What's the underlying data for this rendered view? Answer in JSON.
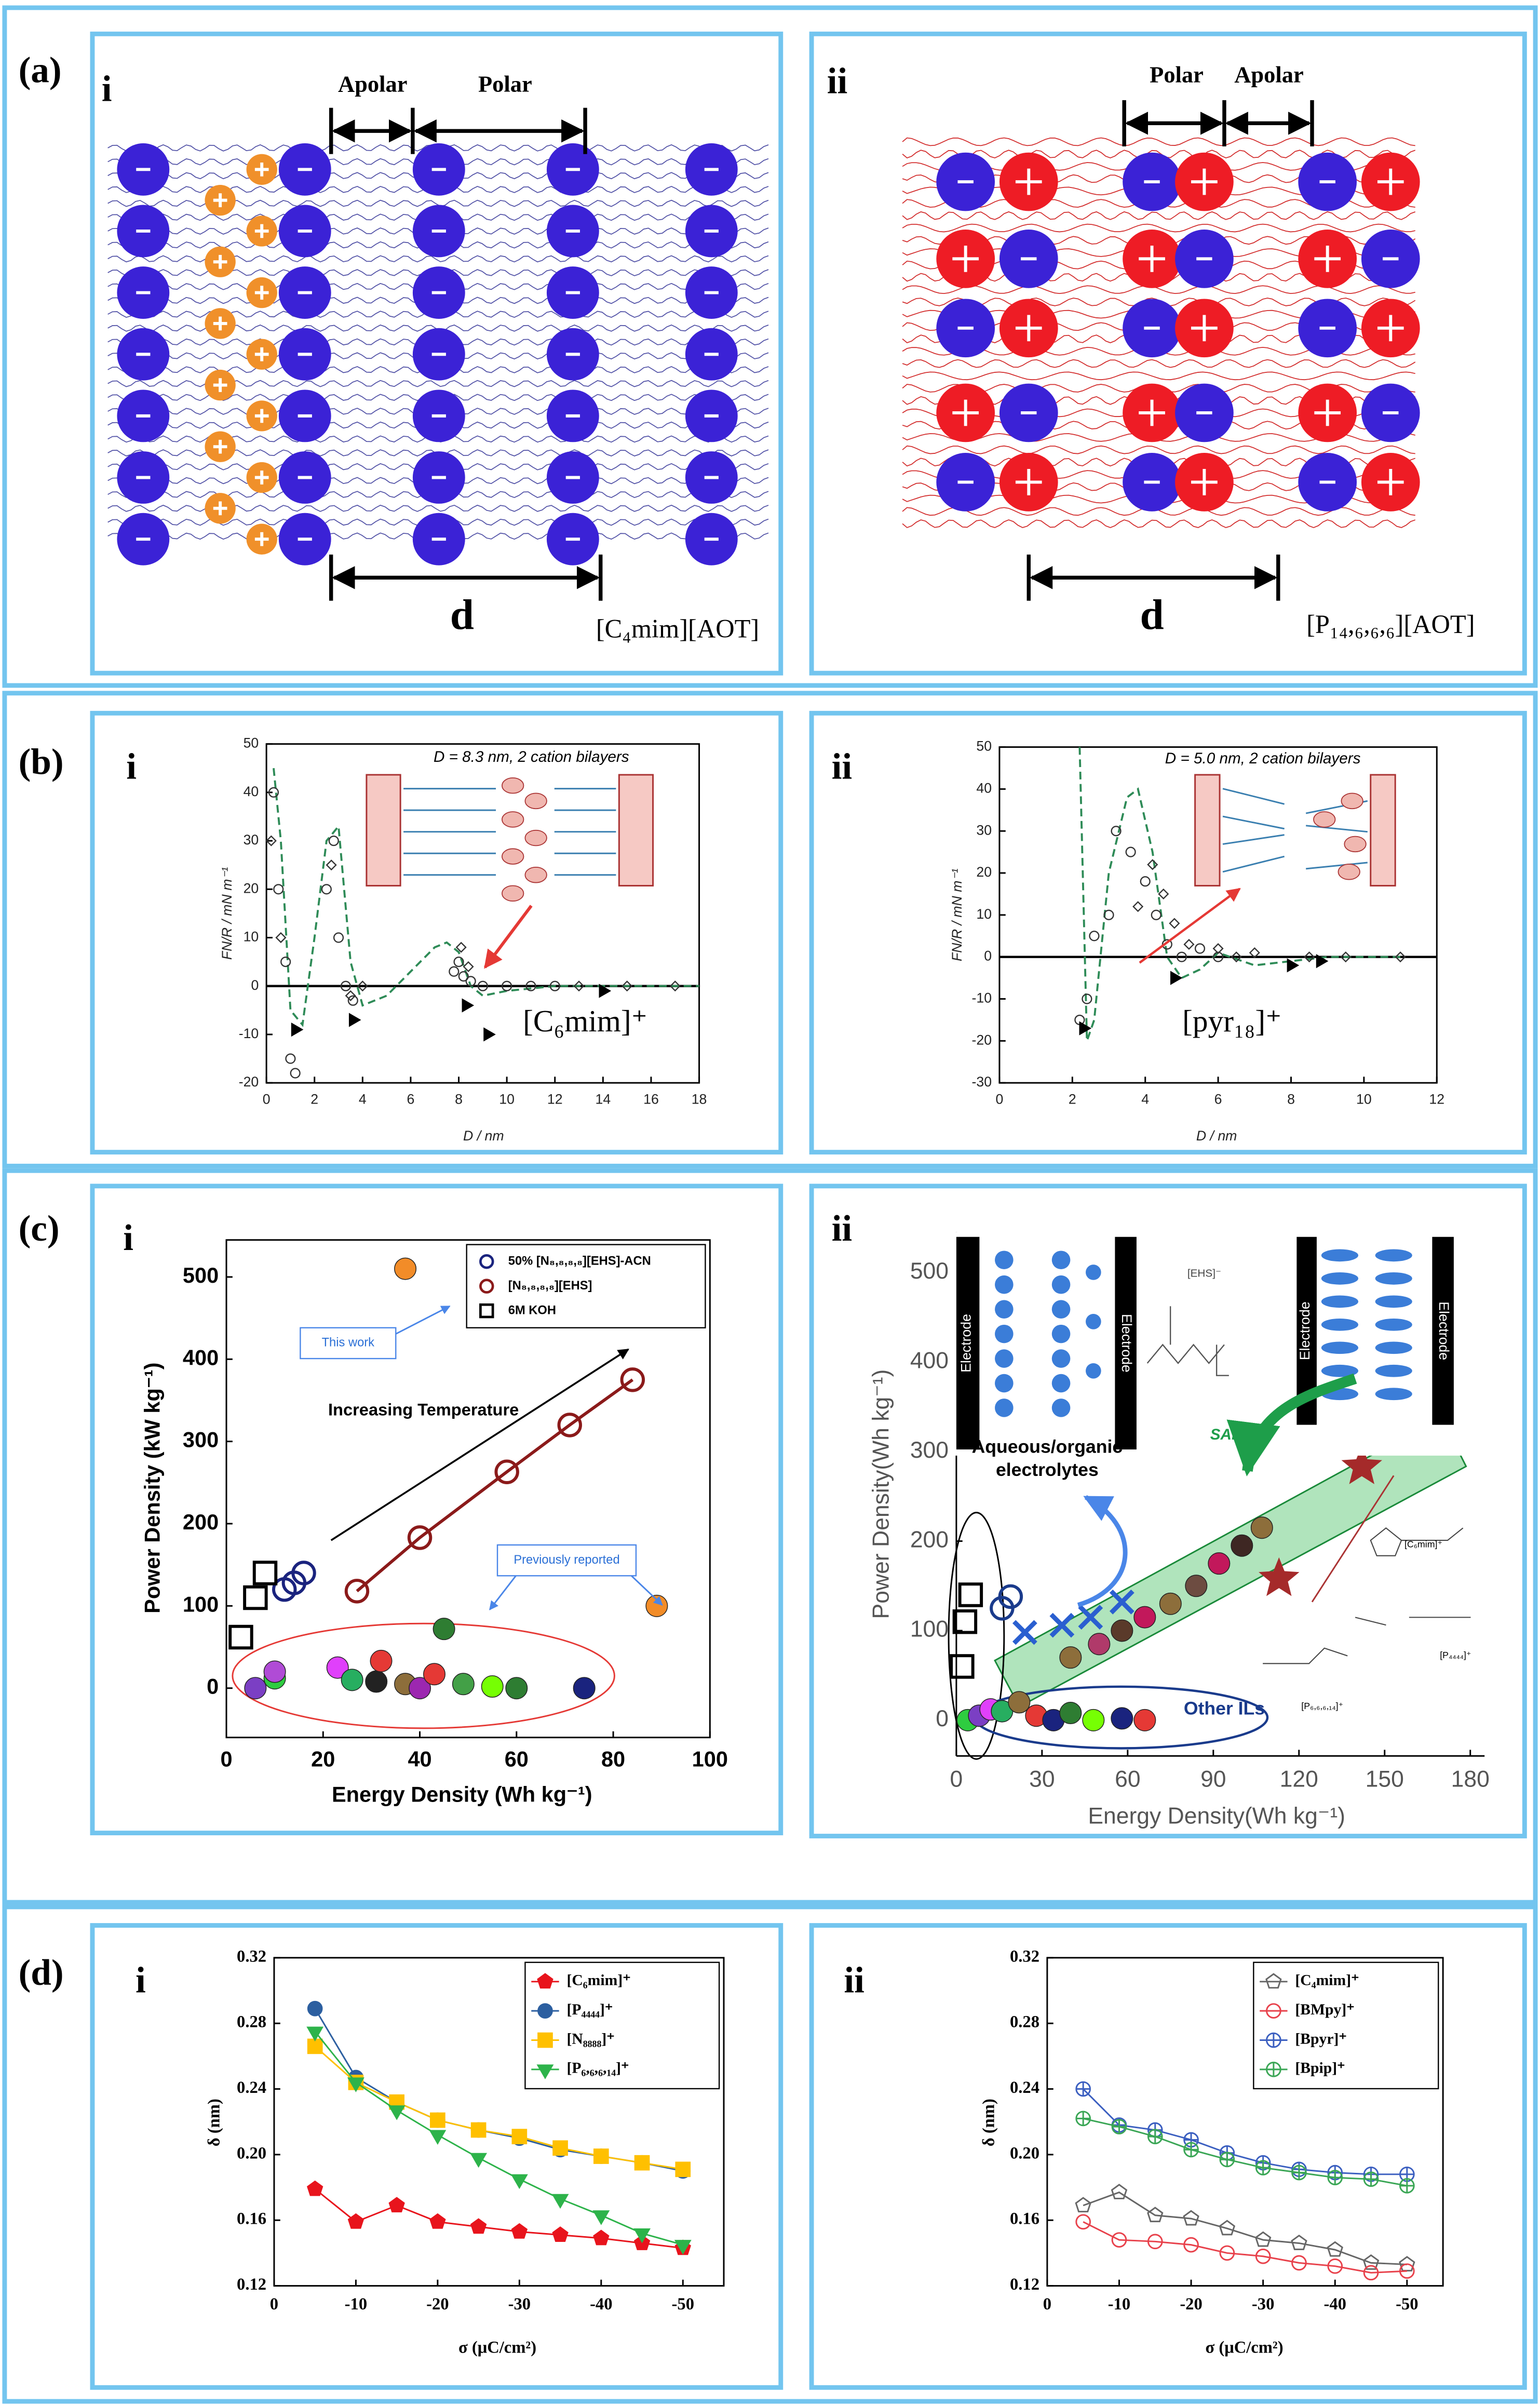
{
  "panel_labels": [
    "(a)",
    "(b)",
    "(c)",
    "(d)"
  ],
  "sub_labels": [
    "i",
    "ii"
  ],
  "panel_a": {
    "apolar": "Apolar",
    "polar": "Polar",
    "spacing": "d",
    "compounds": [
      "[C₄mim][AOT]",
      "[P₁₄,₆,₆,₆][AOT]"
    ]
  },
  "chart_data": [
    {
      "type": "scatter",
      "annotation": "D = 8.3 nm, 2 cation bilayers",
      "ion": "[C₆mim]⁺",
      "xlabel": "D / nm",
      "ylabel": "FN/R / mN m⁻¹",
      "xlim": [
        0,
        18
      ],
      "xticks": [
        0,
        2,
        4,
        6,
        8,
        10,
        12,
        14,
        16,
        18
      ],
      "ylim": [
        -20,
        50
      ],
      "yticks": [
        -20,
        -10,
        0,
        10,
        20,
        30,
        40,
        50
      ],
      "zero_line": true,
      "series": [
        {
          "color": "#2e8b57",
          "marker": "none",
          "line": "dashed",
          "x": [
            0.3,
            0.6,
            1,
            1.5,
            2,
            2.5,
            3,
            3.5,
            4,
            5,
            6,
            7,
            7.5,
            8,
            8.5,
            9,
            10,
            12,
            14,
            16,
            18
          ],
          "values": [
            45,
            30,
            -5,
            -8,
            10,
            30,
            33,
            5,
            -4,
            -2,
            3,
            8,
            9,
            7,
            0,
            -2,
            -1,
            0,
            0,
            0,
            0
          ]
        },
        {
          "color": "#333333",
          "marker": "circle",
          "filled": false,
          "line": "none",
          "x": [
            0.3,
            0.5,
            0.8,
            1,
            1.2,
            2.5,
            2.8,
            3,
            3.3,
            3.6,
            7.8,
            8,
            8.2,
            8.5,
            9,
            10,
            11,
            12
          ],
          "values": [
            40,
            20,
            5,
            -15,
            -18,
            20,
            30,
            10,
            0,
            -3,
            3,
            5,
            2,
            1,
            0,
            0,
            0,
            0
          ]
        },
        {
          "color": "#333333",
          "marker": "diamond",
          "filled": false,
          "line": "none",
          "x": [
            0.2,
            0.6,
            2.7,
            3.5,
            4,
            8.1,
            8.4,
            13,
            15,
            17
          ],
          "values": [
            30,
            10,
            25,
            -2,
            0,
            8,
            4,
            0,
            0,
            0
          ]
        },
        {
          "color": "#000000",
          "marker": "triangle-right",
          "filled": true,
          "line": "none",
          "x": [
            1.2,
            3.6,
            8.3,
            9.2,
            14
          ],
          "values": [
            -9,
            -7,
            -4,
            -10,
            -1
          ]
        }
      ]
    },
    {
      "type": "scatter",
      "annotation": "D = 5.0 nm, 2 cation bilayers",
      "ion": "[pyr₁₈]⁺",
      "xlabel": "D / nm",
      "ylabel": "FN/R / mN m⁻¹",
      "xlim": [
        0,
        12
      ],
      "xticks": [
        0,
        2,
        4,
        6,
        8,
        10,
        12
      ],
      "ylim": [
        -30,
        50
      ],
      "yticks": [
        -30,
        -20,
        -10,
        0,
        10,
        20,
        30,
        40,
        50
      ],
      "zero_line": true,
      "series": [
        {
          "color": "#2e8b57",
          "marker": "none",
          "line": "dashed",
          "x": [
            2.2,
            2.4,
            2.6,
            3,
            3.5,
            3.8,
            4.2,
            4.6,
            5,
            5.5,
            6,
            7,
            8,
            9,
            10,
            11
          ],
          "values": [
            50,
            -20,
            -15,
            20,
            38,
            40,
            25,
            0,
            -5,
            -3,
            1,
            -2,
            -1,
            0,
            0,
            0
          ]
        },
        {
          "color": "#333333",
          "marker": "circle",
          "filled": false,
          "line": "none",
          "x": [
            2.2,
            2.4,
            2.6,
            3,
            3.2,
            3.6,
            4,
            4.3,
            4.6,
            5,
            5.5,
            6
          ],
          "values": [
            -15,
            -10,
            5,
            10,
            30,
            25,
            18,
            10,
            3,
            0,
            2,
            0
          ]
        },
        {
          "color": "#333333",
          "marker": "diamond",
          "filled": false,
          "line": "none",
          "x": [
            3.8,
            4.2,
            4.5,
            4.8,
            5.2,
            6,
            6.5,
            7,
            8.5,
            9.5,
            11
          ],
          "values": [
            12,
            22,
            15,
            8,
            3,
            2,
            0,
            1,
            0,
            0,
            0
          ]
        },
        {
          "color": "#000000",
          "marker": "triangle-right",
          "filled": true,
          "line": "none",
          "x": [
            2.3,
            4.8,
            8,
            8.8
          ],
          "values": [
            -17,
            -5,
            -2,
            -1
          ]
        }
      ]
    },
    {
      "type": "scatter",
      "xlabel": "Energy Density (Wh kg⁻¹)",
      "ylabel": "Power Density (kW kg⁻¹)",
      "xlim": [
        0,
        100
      ],
      "xticks": [
        0,
        20,
        40,
        60,
        80,
        100
      ],
      "ylim": [
        -60,
        545
      ],
      "yticks": [
        0,
        100,
        200,
        300,
        400,
        500
      ],
      "legend": "upper right",
      "annotations": {
        "this_work": "This work",
        "temperature": "Increasing Temperature",
        "previous": "Previously reported"
      },
      "series": [
        {
          "name": "50% [N₈,₈,₈,₈][EHS]-ACN",
          "color": "#1a237e",
          "marker": "circle",
          "filled": false,
          "line": "none",
          "x": [
            12,
            14,
            16
          ],
          "values": [
            120,
            128,
            140
          ]
        },
        {
          "name": "[N₈,₈,₈,₈][EHS]",
          "color": "#8b1a1a",
          "marker": "circle",
          "filled": false,
          "line": "solid",
          "x": [
            27,
            40,
            58,
            71,
            84
          ],
          "values": [
            118,
            183,
            263,
            320,
            375
          ]
        },
        {
          "name": "6M KOH",
          "color": "#000000",
          "marker": "square",
          "filled": false,
          "line": "none",
          "x": [
            3,
            6,
            8
          ],
          "values": [
            62,
            110,
            140
          ]
        },
        {
          "color": "#f28c28",
          "marker": "sphere",
          "filled": true,
          "line": "none",
          "x": [
            37,
            89
          ],
          "values": [
            510,
            100
          ]
        },
        {
          "color": "#2e7d32",
          "marker": "sphere",
          "filled": true,
          "line": "none",
          "x": [
            6,
            10,
            10,
            23,
            26,
            31,
            32,
            37,
            40,
            43,
            45,
            49,
            55,
            60,
            74
          ],
          "values": [
            0,
            12,
            20,
            25,
            10,
            8,
            33,
            5,
            0,
            17,
            72,
            5,
            2,
            0,
            0
          ],
          "colors": [
            "#7b3fc4",
            "#2ecc40",
            "#b04bd6",
            "#e040fb",
            "#27ae60",
            "#222222",
            "#e53935",
            "#8d6e3b",
            "#9c27b0",
            "#e53935",
            "#2e7d32",
            "#43a047",
            "#76ff03",
            "#2e7d32",
            "#1a237e"
          ]
        }
      ]
    },
    {
      "type": "scatter",
      "xlabel": "Energy Density(Wh kg⁻¹)",
      "ylabel": "Power Density(Wh kg⁻¹)",
      "xlim": [
        0,
        185
      ],
      "xticks": [
        0,
        30,
        60,
        90,
        120,
        150,
        180
      ],
      "ylim": [
        -40,
        545
      ],
      "yticks": [
        0,
        100,
        200,
        300,
        400,
        500
      ],
      "annotations": {
        "electrode": "Electrode",
        "anion": "[EHS]⁻",
        "aqueous": [
          "Aqueous/organic",
          "electrolytes"
        ],
        "sails": "SAILs",
        "other": "Other ILs",
        "cations": [
          "[C₆mim]⁺",
          "[P₄₄₄₄]⁺",
          "[P₆,₆,₆,₁₄]⁺"
        ]
      },
      "series": [
        {
          "color": "#000000",
          "marker": "square",
          "filled": false,
          "line": "none",
          "x": [
            2,
            3,
            5
          ],
          "values": [
            60,
            110,
            140
          ]
        },
        {
          "color": "#1a3b8c",
          "marker": "circle",
          "filled": false,
          "line": "none",
          "x": [
            16,
            19
          ],
          "values": [
            125,
            138
          ]
        },
        {
          "color": "#2a5fd0",
          "marker": "cross",
          "filled": false,
          "line": "none",
          "x": [
            24,
            37,
            47,
            58
          ],
          "values": [
            98,
            106,
            115,
            132
          ]
        },
        {
          "color": "#8d6e3b",
          "marker": "sphere",
          "filled": true,
          "line": "none",
          "x": [
            40,
            50,
            58,
            66,
            75,
            84,
            92,
            100,
            107
          ],
          "values": [
            70,
            85,
            100,
            115,
            130,
            150,
            175,
            195,
            215
          ],
          "colors": [
            "#8d6e3b",
            "#b03a6a",
            "#5a3a2a",
            "#c2185b",
            "#8d6e3b",
            "#6d4c41",
            "#c2185b",
            "#3e2723",
            "#8d6e3b"
          ]
        },
        {
          "color": "#2e7d32",
          "marker": "sphere",
          "filled": true,
          "line": "none",
          "x": [
            4,
            8,
            12,
            16,
            22,
            28,
            34,
            40,
            48,
            58,
            66
          ],
          "values": [
            0,
            5,
            12,
            10,
            20,
            5,
            0,
            8,
            0,
            2,
            0
          ],
          "colors": [
            "#2ecc40",
            "#7b3fc4",
            "#e040fb",
            "#27ae60",
            "#8d6e3b",
            "#e53935",
            "#1a237e",
            "#2e7d32",
            "#76ff03",
            "#1a237e",
            "#e53935"
          ]
        },
        {
          "color": "#a52a2a",
          "marker": "star",
          "filled": true,
          "line": "none",
          "x": [
            113,
            142
          ],
          "values": [
            158,
            283
          ]
        }
      ]
    },
    {
      "type": "line",
      "xlabel": "σ (μC/cm²)",
      "ylabel": "δ (nm)",
      "x": [
        -5,
        -10,
        -15,
        -20,
        -25,
        -30,
        -35,
        -40,
        -45,
        -50
      ],
      "xlim": [
        0,
        -55
      ],
      "xticks": [
        0,
        -10,
        -20,
        -30,
        -40,
        -50
      ],
      "ylim": [
        0.12,
        0.32
      ],
      "yticks": [
        0.12,
        0.16,
        {
          "value": 0.2,
          "label": "0.20"
        },
        0.24,
        0.28,
        0.32
      ],
      "legend": "upper right",
      "series": [
        {
          "name": "[C₆mim]⁺",
          "color": "#e8141c",
          "marker": "pentagon",
          "filled": true,
          "line": "solid",
          "values": [
            0.179,
            0.159,
            0.169,
            0.159,
            0.156,
            0.153,
            0.151,
            0.149,
            0.146,
            0.143
          ]
        },
        {
          "name": "[P₄₄₄₄]⁺",
          "color": "#2c5fa0",
          "marker": "circle",
          "filled": true,
          "line": "solid",
          "values": [
            0.289,
            0.247,
            0.232,
            0.221,
            0.215,
            0.21,
            0.203,
            0.199,
            0.195,
            0.19
          ]
        },
        {
          "name": "[N₈₈₈₈]⁺",
          "color": "#ffc000",
          "marker": "square",
          "filled": true,
          "line": "solid",
          "values": [
            0.266,
            0.244,
            0.232,
            0.221,
            0.215,
            0.211,
            0.204,
            0.199,
            0.195,
            0.191
          ]
        },
        {
          "name": "[P₆,₆,₆,₁₄]⁺",
          "color": "#2db34a",
          "marker": "triangle-down",
          "filled": true,
          "line": "solid",
          "values": [
            0.275,
            0.244,
            0.227,
            0.212,
            0.198,
            0.185,
            0.173,
            0.163,
            0.152,
            0.145
          ]
        }
      ]
    },
    {
      "type": "line",
      "xlabel": "σ (μC/cm²)",
      "ylabel": "δ (nm)",
      "x": [
        -5,
        -10,
        -15,
        -20,
        -25,
        -30,
        -35,
        -40,
        -45,
        -50
      ],
      "xlim": [
        0,
        -55
      ],
      "xticks": [
        0,
        -10,
        -20,
        -30,
        -40,
        -50
      ],
      "ylim": [
        0.12,
        0.32
      ],
      "yticks": [
        0.12,
        0.16,
        {
          "value": 0.2,
          "label": "0.20"
        },
        0.24,
        0.28,
        0.32
      ],
      "legend": "upper right",
      "series": [
        {
          "name": "[C₄mim]⁺",
          "color": "#666666",
          "marker": "pentagon",
          "filled": false,
          "line": "solid",
          "values": [
            0.169,
            0.177,
            0.163,
            0.161,
            0.155,
            0.148,
            0.146,
            0.142,
            0.134,
            0.133
          ]
        },
        {
          "name": "[BMpy]⁺",
          "color": "#e8414b",
          "marker": "circle",
          "filled": false,
          "line": "solid",
          "values": [
            0.159,
            0.148,
            0.147,
            0.145,
            0.14,
            0.138,
            0.134,
            0.132,
            0.128,
            0.129
          ]
        },
        {
          "name": "[Bpyr]⁺",
          "color": "#3b5fc0",
          "marker": "circle-plus",
          "filled": false,
          "line": "solid",
          "values": [
            0.24,
            0.218,
            0.215,
            0.209,
            0.201,
            0.195,
            0.191,
            0.189,
            0.188,
            0.188
          ]
        },
        {
          "name": "[Bpip]⁺",
          "color": "#3aa655",
          "marker": "circle-plus",
          "filled": false,
          "line": "solid",
          "values": [
            0.222,
            0.217,
            0.211,
            0.203,
            0.197,
            0.192,
            0.189,
            0.186,
            0.185,
            0.181
          ]
        }
      ]
    }
  ]
}
